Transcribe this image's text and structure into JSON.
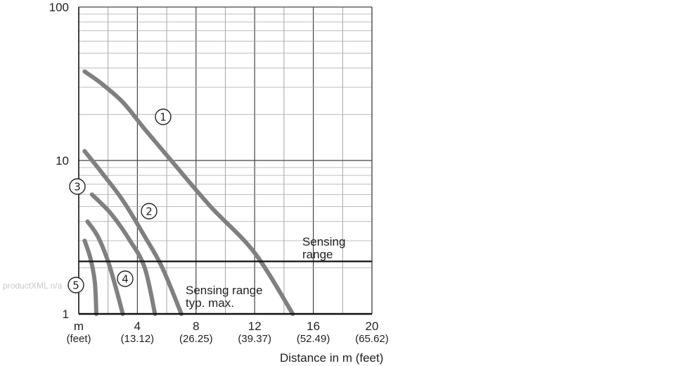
{
  "watermark": "productXML n/a",
  "chart_data": {
    "type": "line",
    "title": "",
    "xlabel": "Distance in m (feet)",
    "ylabel": "",
    "xlim": [
      0,
      20
    ],
    "ylim": [
      1,
      100
    ],
    "yscale": "log",
    "grid": true,
    "x_ticks": [
      {
        "value": 0,
        "label": "m",
        "sub": "(feet)"
      },
      {
        "value": 4,
        "label": "4",
        "sub": "(13.12)"
      },
      {
        "value": 8,
        "label": "8",
        "sub": "(26.25)"
      },
      {
        "value": 12,
        "label": "12",
        "sub": "(39.37)"
      },
      {
        "value": 16,
        "label": "16",
        "sub": "(52.49)"
      },
      {
        "value": 20,
        "label": "20",
        "sub": "(65.62)"
      }
    ],
    "y_ticks": [
      {
        "value": 1,
        "label": "1"
      },
      {
        "value": 10,
        "label": "10"
      },
      {
        "value": 100,
        "label": "100"
      }
    ],
    "series": [
      {
        "label": "①",
        "color": "#808080",
        "points": [
          [
            0.4,
            38
          ],
          [
            1.5,
            32
          ],
          [
            3,
            24
          ],
          [
            4.5,
            16
          ],
          [
            6.5,
            9.5
          ],
          [
            9,
            5
          ],
          [
            12,
            2.5
          ],
          [
            14.6,
            1.0
          ]
        ]
      },
      {
        "label": "②",
        "color": "#808080",
        "points": [
          [
            0.4,
            11.5
          ],
          [
            1.5,
            8.5
          ],
          [
            3,
            5.5
          ],
          [
            4.5,
            3.2
          ],
          [
            5.7,
            2.0
          ],
          [
            7.0,
            1.0
          ]
        ]
      },
      {
        "label": "③",
        "color": "#808080",
        "points": [
          [
            0.9,
            6.0
          ],
          [
            2.2,
            4.5
          ],
          [
            3.5,
            3.0
          ],
          [
            4.5,
            2.0
          ],
          [
            5.2,
            1.0
          ]
        ]
      },
      {
        "label": "④",
        "color": "#808080",
        "points": [
          [
            0.6,
            4.0
          ],
          [
            1.3,
            3.2
          ],
          [
            2.0,
            2.2
          ],
          [
            2.6,
            1.4
          ],
          [
            3.0,
            1.0
          ]
        ]
      },
      {
        "label": "⑤",
        "color": "#808080",
        "points": [
          [
            0.4,
            3.0
          ],
          [
            0.8,
            2.3
          ],
          [
            1.1,
            1.6
          ],
          [
            1.2,
            1.0
          ]
        ]
      }
    ],
    "threshold": {
      "value": 2.2,
      "label_line1": "Sensing",
      "label_line2": "range"
    },
    "annotations": [
      {
        "line1": "Sensing range",
        "line2": "typ. max."
      }
    ]
  }
}
